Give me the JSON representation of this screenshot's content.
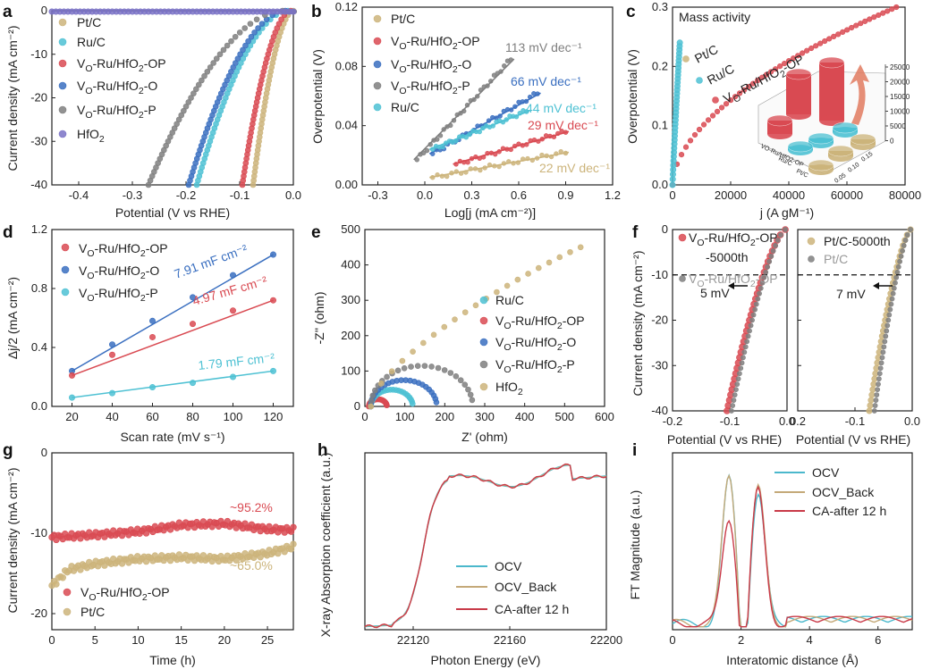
{
  "colors": {
    "ptc": "#CCB47B",
    "ruc": "#4EC1D3",
    "op": "#D94A52",
    "o": "#3A6FC0",
    "p": "#7F7F7F",
    "hfo2": "#7A72C6",
    "ocv": "#4BB8CC",
    "ocv_back": "#C4A979",
    "ca": "#C93A48"
  },
  "panels": {
    "a": {
      "label": "a",
      "xlabel": "Potential (V vs RHE)",
      "ylabel": "Current density (mA cm⁻²)",
      "legend": [
        "Pt/C",
        "Ru/C",
        "VO-Ru/HfO2-OP",
        "VO-Ru/HfO2-O",
        "VO-Ru/HfO2-P",
        "HfO2"
      ]
    },
    "b": {
      "label": "b",
      "xlabel": "Log[j (mA cm⁻²)]",
      "ylabel": "Overpotential (V)",
      "legend": [
        "Pt/C",
        "VO-Ru/HfO2-OP",
        "VO-Ru/HfO2-O",
        "VO-Ru/HfO2-P",
        "Ru/C"
      ],
      "tafel": [
        "113 mV dec⁻¹",
        "66 mV dec⁻¹",
        "44 mV dec⁻¹",
        "29 mV dec⁻¹",
        "22 mV dec⁻¹"
      ]
    },
    "c": {
      "label": "c",
      "xlabel": "j (A gM⁻¹)",
      "ylabel": "Overpotential (V)",
      "title": "Mass activity",
      "labels": [
        "Pt/C",
        "Ru/C",
        "VO-Ru/HfO2-OP"
      ],
      "inset_ticks": [
        "25000",
        "20000",
        "15000",
        "10000",
        "5000",
        "0"
      ],
      "inset_x": [
        "0.05",
        "0.10",
        "0.15"
      ],
      "inset_y": [
        "VO-Ru/HfO2-OP",
        "Ru/C",
        "Pt/C"
      ]
    },
    "d": {
      "label": "d",
      "xlabel": "Scan rate (mV s⁻¹)",
      "ylabel": "Δj/2 (mA cm⁻²)",
      "legend": [
        "VO-Ru/HfO2-OP",
        "VO-Ru/HfO2-O",
        "VO-Ru/HfO2-P"
      ],
      "slopes": [
        "7.91 mF cm⁻²",
        "4.97 mF cm⁻²",
        "1.79 mF cm⁻²"
      ]
    },
    "e": {
      "label": "e",
      "xlabel": "Z' (ohm)",
      "ylabel": "-Z'' (ohm)",
      "legend": [
        "Ru/C",
        "VO-Ru/HfO2-OP",
        "VO-Ru/HfO2-O",
        "VO-Ru/HfO2-P",
        "HfO2"
      ]
    },
    "f": {
      "label": "f",
      "xlabel_left": "Potential (V vs RHE)",
      "xlabel_right": "Potential (V vs RHE)",
      "ylabel": "Current density (mA cm⁻²)",
      "legend_left": [
        "VO-Ru/HfO2-OP",
        "-5000th",
        "VO-Ru/HfO2-OP"
      ],
      "legend_right": [
        "Pt/C-5000th",
        "Pt/C"
      ],
      "shift_left": "5 mV",
      "shift_right": "7 mV"
    },
    "g": {
      "label": "g",
      "xlabel": "Time (h)",
      "ylabel": "Current density (mA cm⁻²)",
      "legend": [
        "VO-Ru/HfO2-OP",
        "Pt/C"
      ],
      "ret_op": "~95.2%",
      "ret_pt": "~65.0%"
    },
    "h": {
      "label": "h",
      "xlabel": "Photon Energy (eV)",
      "ylabel": "X-ray Absorption coefficient (a.u.)",
      "legend": [
        "OCV",
        "OCV_Back",
        "CA-after 12 h"
      ]
    },
    "i": {
      "label": "i",
      "xlabel": "Interatomic distance (Å)",
      "ylabel": "FT Magnitude (a.u.)",
      "legend": [
        "OCV",
        "OCV_Back",
        "CA-after 12 h"
      ]
    }
  },
  "chart_data": [
    {
      "panel": "a",
      "type": "line",
      "xlim": [
        -0.45,
        0.0
      ],
      "ylim": [
        -40,
        0
      ],
      "xticks": [
        "-0.4",
        "-0.3",
        "-0.2",
        "-0.1",
        "0.0"
      ],
      "yticks": [
        "0",
        "-10",
        "-20",
        "-30",
        "-40"
      ],
      "series": [
        {
          "name": "Pt/C",
          "onset": 0.0,
          "x_at_-40": -0.075
        },
        {
          "name": "Ru/C",
          "onset": -0.01,
          "x_at_-40": -0.18
        },
        {
          "name": "VO-Ru/HfO2-OP",
          "onset": -0.005,
          "x_at_-40": -0.095
        },
        {
          "name": "VO-Ru/HfO2-O",
          "onset": -0.015,
          "x_at_-40": -0.195
        },
        {
          "name": "VO-Ru/HfO2-P",
          "onset": -0.02,
          "x_at_-40": -0.27
        },
        {
          "name": "HfO2",
          "onset": -0.45,
          "x_at_-40": null
        }
      ]
    },
    {
      "panel": "b",
      "type": "line",
      "xlim": [
        -0.4,
        1.2
      ],
      "ylim": [
        0.0,
        0.12
      ],
      "xticks": [
        "-0.3",
        "0.0",
        "0.3",
        "0.6",
        "0.9",
        "1.2"
      ],
      "yticks": [
        "0.00",
        "0.04",
        "0.08",
        "0.12"
      ],
      "series": [
        {
          "name": "VO-Ru/HfO2-P",
          "x": [
            -0.05,
            0.55
          ],
          "y": [
            0.017,
            0.085
          ],
          "slope": "113 mV dec⁻¹"
        },
        {
          "name": "VO-Ru/HfO2-O",
          "x": [
            0.05,
            0.72
          ],
          "y": [
            0.021,
            0.062
          ],
          "slope": "66 mV dec⁻¹"
        },
        {
          "name": "Ru/C",
          "x": [
            0.05,
            0.65
          ],
          "y": [
            0.024,
            0.05
          ],
          "slope": "44 mV dec⁻¹"
        },
        {
          "name": "VO-Ru/HfO2-OP",
          "x": [
            0.2,
            0.9
          ],
          "y": [
            0.014,
            0.036
          ],
          "slope": "29 mV dec⁻¹"
        },
        {
          "name": "Pt/C",
          "x": [
            0.05,
            0.9
          ],
          "y": [
            0.005,
            0.022
          ],
          "slope": "22 mV dec⁻¹"
        }
      ]
    },
    {
      "panel": "c",
      "type": "line",
      "xlim": [
        0,
        80000
      ],
      "ylim": [
        0,
        0.3
      ],
      "xticks": [
        "0",
        "20000",
        "40000",
        "60000",
        "80000"
      ],
      "yticks": [
        "0.0",
        "0.1",
        "0.2",
        "0.3"
      ],
      "series": [
        {
          "name": "VO-Ru/HfO2-OP",
          "j_at_0.3V": 77000
        },
        {
          "name": "Ru/C",
          "j_at_0.24V": 2500
        },
        {
          "name": "Pt/C",
          "j_at_0.24V": 1500
        }
      ],
      "inset_bars": {
        "VO-Ru/HfO2-OP": [
          3000,
          6500,
          20000
        ],
        "Ru/C": [
          300,
          600,
          1000
        ],
        "Pt/C": [
          400,
          700,
          1200
        ]
      }
    },
    {
      "panel": "d",
      "type": "scatter",
      "xlim": [
        10,
        130
      ],
      "ylim": [
        0.0,
        1.2
      ],
      "xticks": [
        "20",
        "40",
        "60",
        "80",
        "100",
        "120"
      ],
      "yticks": [
        "0.0",
        "0.4",
        "0.8",
        "1.2"
      ],
      "x": [
        20,
        40,
        60,
        80,
        100,
        120
      ],
      "series": [
        {
          "name": "VO-Ru/HfO2-O",
          "values": [
            0.24,
            0.42,
            0.58,
            0.74,
            0.89,
            1.03
          ],
          "slope": "7.91 mF cm⁻²"
        },
        {
          "name": "VO-Ru/HfO2-OP",
          "values": [
            0.21,
            0.35,
            0.47,
            0.56,
            0.65,
            0.72
          ],
          "slope": "4.97 mF cm⁻²"
        },
        {
          "name": "VO-Ru/HfO2-P",
          "values": [
            0.06,
            0.09,
            0.13,
            0.16,
            0.2,
            0.24
          ],
          "slope": "1.79 mF cm⁻²"
        }
      ]
    },
    {
      "panel": "e",
      "type": "scatter",
      "xlim": [
        0,
        600
      ],
      "ylim": [
        0,
        500
      ],
      "xticks": [
        "0",
        "100",
        "200",
        "300",
        "400",
        "500",
        "600"
      ],
      "yticks": [
        "0",
        "100",
        "200",
        "300",
        "400",
        "500"
      ],
      "series": [
        {
          "name": "VO-Ru/HfO2-OP",
          "r0": 10,
          "r1": 55
        },
        {
          "name": "Ru/C",
          "r0": 15,
          "r1": 120
        },
        {
          "name": "VO-Ru/HfO2-O",
          "r0": 15,
          "r1": 180
        },
        {
          "name": "VO-Ru/HfO2-P",
          "r0": 15,
          "r1": 270
        },
        {
          "name": "HfO2",
          "x_end": 540,
          "y_end": 450
        }
      ]
    },
    {
      "panel": "f",
      "type": "line",
      "xlim": [
        -0.2,
        0.0
      ],
      "ylim": [
        -40,
        0
      ],
      "xticks": [
        "-0.2",
        "-0.1",
        "0.0"
      ],
      "yticks": [
        "0",
        "-10",
        "-20",
        "-30",
        "-40"
      ],
      "series": [
        {
          "name": "VO-Ru/HfO2-OP-5000th",
          "x_at_-40": -0.105
        },
        {
          "name": "VO-Ru/HfO2-OP",
          "x_at_-40": -0.095
        },
        {
          "name": "Pt/C-5000th",
          "x_at_-40": -0.075
        },
        {
          "name": "Pt/C",
          "x_at_-40": -0.065
        }
      ]
    },
    {
      "panel": "g",
      "type": "scatter",
      "xlim": [
        0,
        28
      ],
      "ylim": [
        -22,
        0
      ],
      "xticks": [
        "0",
        "5",
        "10",
        "15",
        "20",
        "25"
      ],
      "yticks": [
        "0",
        "-10",
        "-20"
      ],
      "series": [
        {
          "name": "VO-Ru/HfO2-OP",
          "x": [
            0,
            5,
            10,
            15,
            20,
            25,
            28
          ],
          "values": [
            -10.5,
            -10.2,
            -9.8,
            -9.0,
            -8.8,
            -9.5,
            -9.6
          ]
        },
        {
          "name": "Pt/C",
          "x": [
            0,
            2,
            5,
            10,
            15,
            20,
            25,
            28
          ],
          "values": [
            -16.5,
            -14.5,
            -13.8,
            -13.2,
            -13.0,
            -13.2,
            -12.5,
            -11.7
          ]
        }
      ]
    },
    {
      "panel": "h",
      "type": "line",
      "xlim": [
        22100,
        22200
      ],
      "ylim": [
        0,
        1.15
      ],
      "xticks": [
        "22120",
        "22160",
        "22200"
      ],
      "series": [
        {
          "name": "OCV"
        },
        {
          "name": "OCV_Back"
        },
        {
          "name": "CA-after 12 h"
        }
      ]
    },
    {
      "panel": "i",
      "type": "line",
      "xlim": [
        0,
        7
      ],
      "ylim": [
        0,
        1.2
      ],
      "xticks": [
        "0",
        "2",
        "4",
        "6"
      ],
      "series": [
        {
          "name": "OCV",
          "peaks": [
            [
              1.65,
              0.98
            ],
            [
              2.5,
              0.88
            ]
          ]
        },
        {
          "name": "OCV_Back",
          "peaks": [
            [
              1.65,
              1.0
            ],
            [
              2.5,
              0.92
            ]
          ]
        },
        {
          "name": "CA-after 12 h",
          "peaks": [
            [
              1.65,
              0.72
            ],
            [
              2.5,
              0.9
            ]
          ]
        }
      ]
    }
  ]
}
